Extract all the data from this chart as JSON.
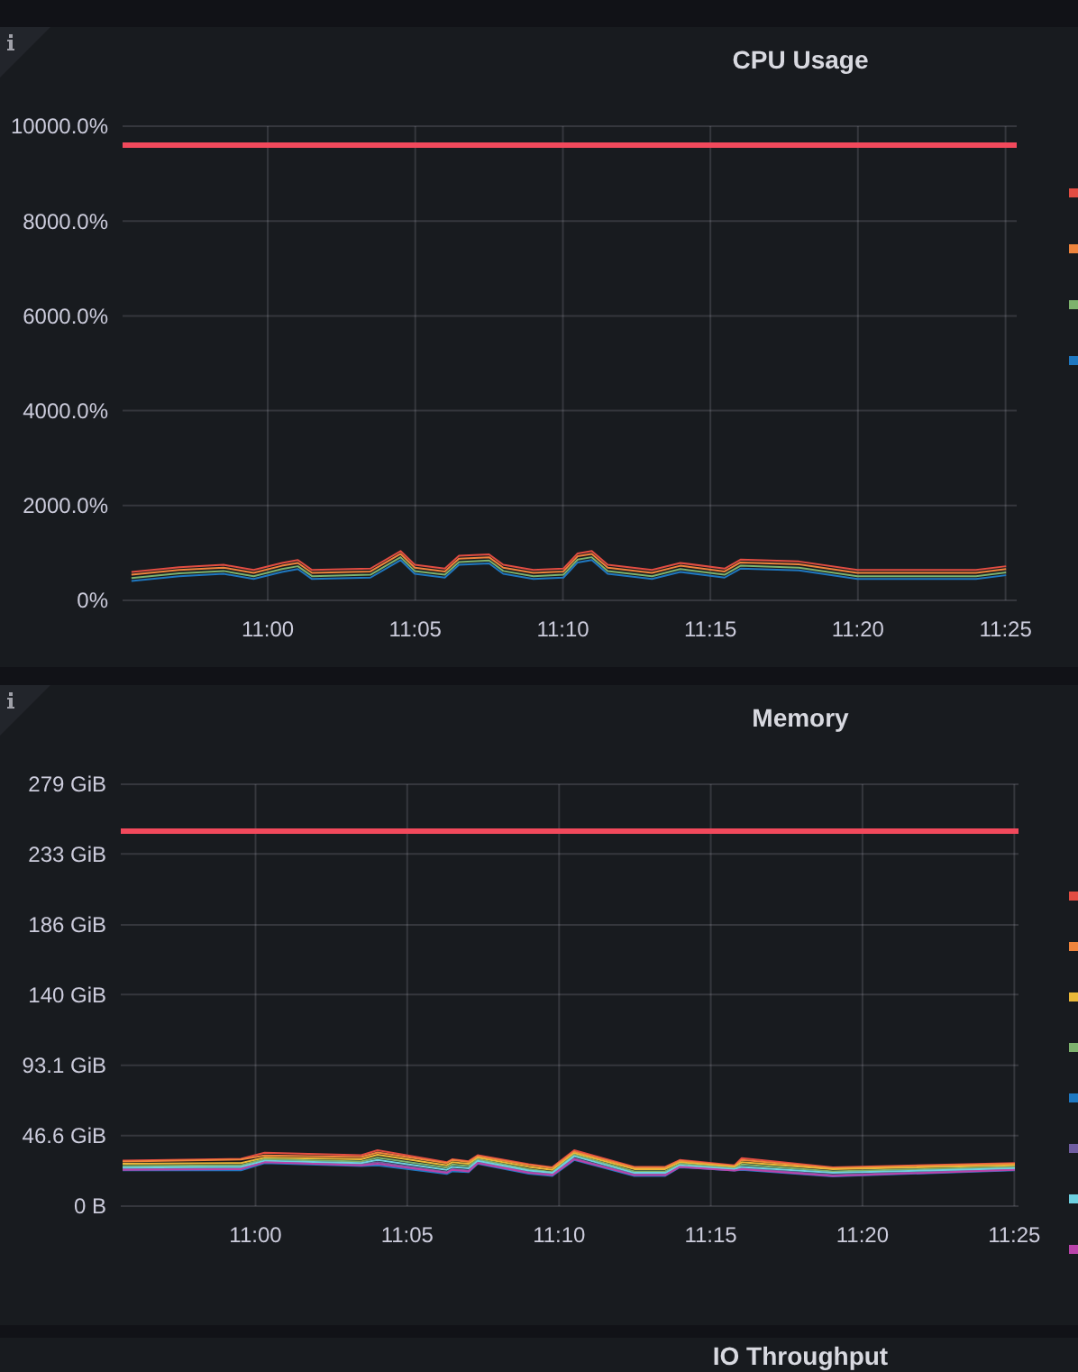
{
  "chart_data": [
    {
      "type": "line",
      "title": "CPU Usage",
      "x": [
        10.923,
        10.95,
        10.975,
        10.992,
        11.008,
        11.017,
        11.025,
        11.058,
        11.075,
        11.083,
        11.1,
        11.108,
        11.125,
        11.133,
        11.15,
        11.167,
        11.175,
        11.183,
        11.192,
        11.217,
        11.233,
        11.258,
        11.267,
        11.3,
        11.333,
        11.367,
        11.4,
        11.417
      ],
      "series": [
        {
          "color": "#e24d42",
          "values": [
            600,
            700,
            750,
            640,
            790,
            850,
            640,
            670,
            1040,
            750,
            670,
            940,
            970,
            750,
            640,
            670,
            990,
            1040,
            750,
            640,
            790,
            670,
            860,
            820,
            640,
            640,
            640,
            720
          ]
        },
        {
          "color": "#ef843c",
          "values": [
            540,
            640,
            690,
            580,
            730,
            790,
            580,
            610,
            980,
            690,
            610,
            880,
            910,
            690,
            580,
            610,
            930,
            980,
            690,
            580,
            730,
            610,
            800,
            760,
            580,
            580,
            580,
            660
          ]
        },
        {
          "color": "#7eb26d",
          "values": [
            470,
            570,
            620,
            510,
            660,
            720,
            510,
            540,
            910,
            620,
            540,
            810,
            840,
            620,
            510,
            540,
            860,
            910,
            620,
            510,
            660,
            540,
            730,
            690,
            510,
            510,
            510,
            590
          ]
        },
        {
          "color": "#1f78c1",
          "values": [
            410,
            510,
            560,
            450,
            600,
            660,
            450,
            480,
            850,
            560,
            480,
            750,
            780,
            560,
            450,
            480,
            800,
            850,
            560,
            450,
            600,
            480,
            670,
            630,
            450,
            450,
            450,
            530
          ]
        }
      ],
      "xlim": [
        10.918,
        11.423
      ],
      "xticks": [
        {
          "value": 11,
          "label": "11:00"
        },
        {
          "value": 11.0833,
          "label": "11:05"
        },
        {
          "value": 11.1667,
          "label": "11:10"
        },
        {
          "value": 11.25,
          "label": "11:15"
        },
        {
          "value": 11.3333,
          "label": "11:20"
        },
        {
          "value": 11.4167,
          "label": "11:25"
        }
      ],
      "ylim": [
        0,
        10000
      ],
      "yticks": [
        {
          "value": 0,
          "label": "0%"
        },
        {
          "value": 2000,
          "label": "2000.0%"
        },
        {
          "value": 4000,
          "label": "4000.0%"
        },
        {
          "value": 6000,
          "label": "6000.0%"
        },
        {
          "value": 8000,
          "label": "8000.0%"
        },
        {
          "value": 10000,
          "label": "10000.0%"
        }
      ],
      "ref_lines": [
        {
          "axis": "y",
          "value": 9600,
          "color": "#f2495c"
        }
      ],
      "grid": true,
      "marker": "none",
      "line_style": "solid"
    },
    {
      "type": "line",
      "title": "Memory",
      "x": [
        10.927,
        10.992,
        11.005,
        11.058,
        11.067,
        11.105,
        11.108,
        11.117,
        11.122,
        11.15,
        11.163,
        11.175,
        11.208,
        11.225,
        11.233,
        11.263,
        11.267,
        11.317,
        11.417
      ],
      "series": [
        {
          "color": "#e24d42",
          "values": [
            30.1,
            31.3,
            35.3,
            33.7,
            37,
            29,
            31,
            29.7,
            33.7,
            27.7,
            25.7,
            37,
            26,
            26,
            30.5,
            27,
            31.7,
            25.7,
            28.5
          ]
        },
        {
          "color": "#ef843c",
          "values": [
            29.5,
            30.8,
            33.5,
            32.5,
            35.5,
            28.5,
            30.5,
            29.2,
            33,
            27.2,
            25.2,
            36,
            25.5,
            25.5,
            30,
            26.5,
            30.5,
            25.2,
            28
          ]
        },
        {
          "color": "#eab839",
          "values": [
            28,
            28.5,
            32,
            31,
            34,
            27,
            29,
            28,
            32,
            26,
            24,
            35,
            24.5,
            24.5,
            29,
            26,
            29,
            24.5,
            27
          ]
        },
        {
          "color": "#7eb26d",
          "values": [
            26.5,
            27,
            31,
            29.5,
            32,
            25.5,
            27.5,
            26.5,
            31,
            24.5,
            22.5,
            34,
            23,
            23,
            28,
            25,
            27.5,
            23,
            26
          ]
        },
        {
          "color": "#1f78c1",
          "values": [
            23.7,
            23.7,
            28.5,
            26.5,
            27,
            21.3,
            23,
            22.5,
            28,
            21.5,
            20,
            30.5,
            20,
            20,
            25.7,
            23.5,
            24,
            19.7,
            23.7
          ]
        },
        {
          "color": "#705da0",
          "values": [
            24.5,
            25,
            29.5,
            27.5,
            29,
            22.5,
            24.5,
            23.5,
            29,
            22.5,
            21,
            31.5,
            21,
            21,
            26.5,
            24,
            25,
            20.5,
            24.5
          ]
        },
        {
          "color": "#6ed0e0",
          "values": [
            25.5,
            26,
            30,
            28.5,
            30.5,
            24,
            26,
            25,
            30,
            23.5,
            22,
            33,
            22,
            22,
            27,
            24.5,
            26,
            22,
            25
          ]
        },
        {
          "color": "#ba43a9",
          "values": [
            24,
            24.5,
            29,
            27,
            28,
            22,
            24,
            23,
            28.5,
            22,
            20.5,
            31,
            20.5,
            20.5,
            26,
            23.5,
            24.5,
            20,
            24
          ]
        }
      ],
      "xlim": [
        10.926,
        11.419
      ],
      "xticks": [
        {
          "value": 11,
          "label": "11:00"
        },
        {
          "value": 11.0833,
          "label": "11:05"
        },
        {
          "value": 11.1667,
          "label": "11:10"
        },
        {
          "value": 11.25,
          "label": "11:15"
        },
        {
          "value": 11.3333,
          "label": "11:20"
        },
        {
          "value": 11.4167,
          "label": "11:25"
        }
      ],
      "ylim": [
        0,
        279
      ],
      "yticks": [
        {
          "value": 0,
          "label": "0 B"
        },
        {
          "value": 46.6,
          "label": "46.6 GiB"
        },
        {
          "value": 93.1,
          "label": "93.1 GiB"
        },
        {
          "value": 140,
          "label": "140 GiB"
        },
        {
          "value": 186,
          "label": "186 GiB"
        },
        {
          "value": 233,
          "label": "233 GiB"
        },
        {
          "value": 279,
          "label": "279 GiB"
        }
      ],
      "ref_lines": [
        {
          "axis": "y",
          "value": 248,
          "color": "#f2495c"
        }
      ],
      "grid": true,
      "marker": "none",
      "line_style": "solid"
    },
    {
      "type": "other",
      "title": "IO Throughput"
    }
  ]
}
